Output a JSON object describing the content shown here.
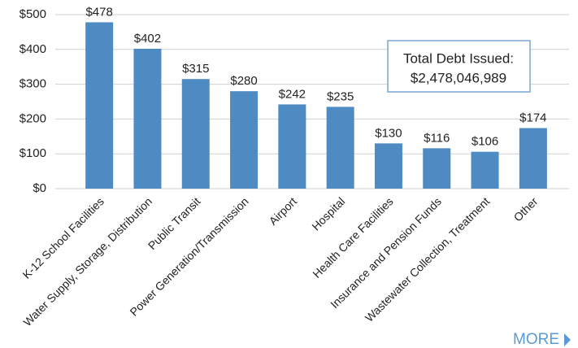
{
  "chart_data": {
    "type": "bar",
    "categories": [
      "K-12 School Facilities",
      "Water Supply, Storage, Distribution",
      "Public Transit",
      "Power Generation/Transmission",
      "Airport",
      "Hospital",
      "Health Care Facilities",
      "Insurance and Pension Funds",
      "Wastewater Collection, Treatment",
      "Other"
    ],
    "values": [
      478,
      402,
      315,
      280,
      242,
      235,
      130,
      116,
      106,
      174
    ],
    "value_labels": [
      "$478",
      "$402",
      "$315",
      "$280",
      "$242",
      "$235",
      "$130",
      "$116",
      "$106",
      "$174"
    ],
    "color": "#4f8bc3",
    "ylim": [
      0,
      500
    ],
    "yticks": [
      {
        "value": 0,
        "label": "$0"
      },
      {
        "value": 100,
        "label": "$100"
      },
      {
        "value": 200,
        "label": "$200"
      },
      {
        "value": 300,
        "label": "$300"
      },
      {
        "value": 400,
        "label": "$400"
      },
      {
        "value": 500,
        "label": "$500"
      }
    ],
    "grid": true,
    "annotation": {
      "title": "Total Debt Issued:",
      "text": "$2,478,046,989"
    },
    "link": "MORE"
  }
}
